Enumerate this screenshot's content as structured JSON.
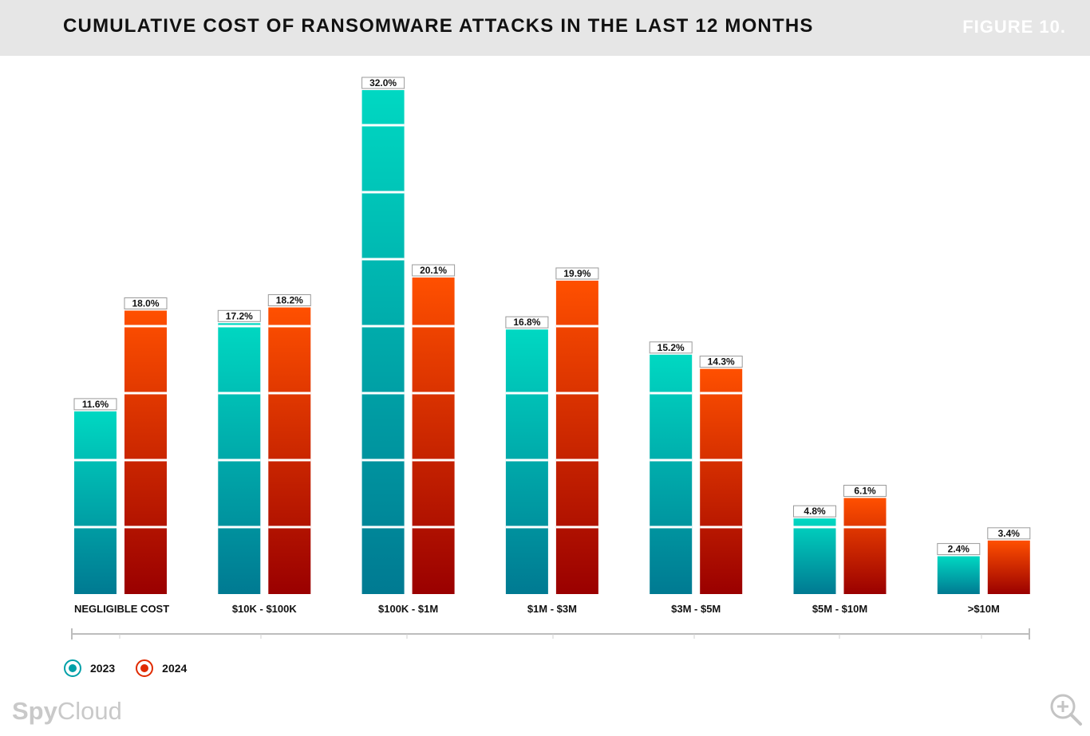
{
  "header": {
    "title": "CUMULATIVE COST OF RANSOMWARE ATTACKS IN THE LAST 12 MONTHS",
    "figure_label": "FIGURE 10."
  },
  "colors": {
    "series_2023_top": "#00d8c2",
    "series_2023_bottom": "#007a92",
    "series_2024_top": "#ff5000",
    "series_2024_bottom": "#9a0000"
  },
  "chart_data": {
    "type": "bar",
    "title": "CUMULATIVE COST OF RANSOMWARE ATTACKS IN THE LAST 12 MONTHS",
    "xlabel": "",
    "ylabel": "",
    "categories": [
      "NEGLIGIBLE COST",
      "$10K - $100K",
      "$100K - $1M",
      "$1M - $3M",
      "$3M - $5M",
      "$5M - $10M",
      ">$10M"
    ],
    "series": [
      {
        "name": "2023",
        "values": [
          11.6,
          17.2,
          32.0,
          16.8,
          15.2,
          4.8,
          2.4
        ],
        "labels": [
          "11.6%",
          "17.2%",
          "32.0%",
          "16.8%",
          "15.2%",
          "4.8%",
          "2.4%"
        ]
      },
      {
        "name": "2024",
        "values": [
          18.0,
          18.2,
          20.1,
          19.9,
          14.3,
          6.1,
          3.4
        ],
        "labels": [
          "18.0%",
          "18.2%",
          "20.1%",
          "19.9%",
          "14.3%",
          "6.1%",
          "3.4%"
        ]
      }
    ],
    "ylim": [
      0,
      32
    ],
    "grid": false,
    "legend_position": "bottom-left"
  },
  "legend": [
    {
      "label": "2023",
      "color": "#00a0a8"
    },
    {
      "label": "2024",
      "color": "#e02a00"
    }
  ],
  "brand": {
    "part1": "Spy",
    "part2": "Cloud"
  },
  "icons": {
    "zoom": "zoom-in-icon"
  }
}
